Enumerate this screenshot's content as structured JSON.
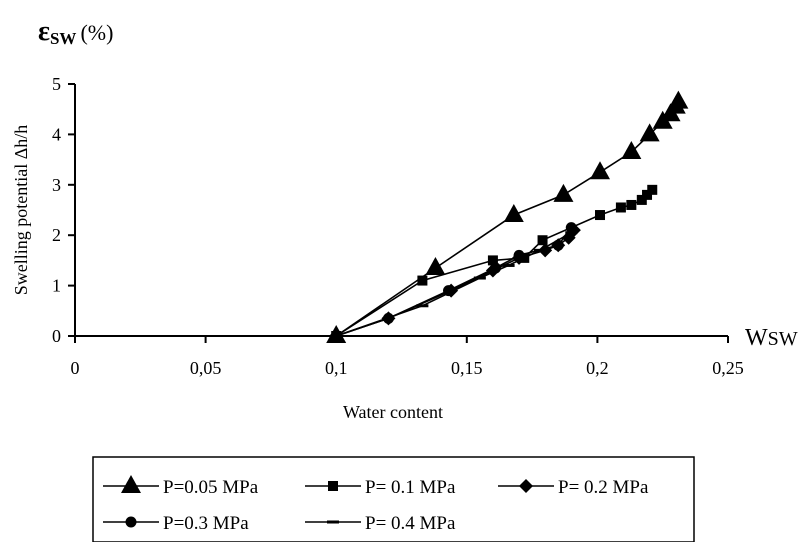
{
  "chart_data": {
    "type": "line",
    "title": "",
    "y_symbol": "ε",
    "y_symbol_sub": "SW",
    "y_unit": "(%)",
    "ylabel": "Swelling potential Δh/h",
    "xlabel": "Water content",
    "x_symbol": "W",
    "x_symbol_sub": "SW",
    "xlim": [
      0,
      0.25
    ],
    "ylim": [
      0,
      5
    ],
    "x_ticks": [
      {
        "v": 0,
        "label": "0"
      },
      {
        "v": 0.05,
        "label": "0,05"
      },
      {
        "v": 0.1,
        "label": "0,1"
      },
      {
        "v": 0.15,
        "label": "0,15"
      },
      {
        "v": 0.2,
        "label": "0,2"
      },
      {
        "v": 0.25,
        "label": "0,25"
      }
    ],
    "y_ticks": [
      {
        "v": 0,
        "label": "0"
      },
      {
        "v": 1,
        "label": "1"
      },
      {
        "v": 2,
        "label": "2"
      },
      {
        "v": 3,
        "label": "3"
      },
      {
        "v": 4,
        "label": "4"
      },
      {
        "v": 5,
        "label": "5"
      }
    ],
    "grid": false,
    "legend_position": "bottom",
    "series": [
      {
        "name": "P=0.05 MPa",
        "marker": "triangle",
        "x": [
          0.1,
          0.138,
          0.168,
          0.187,
          0.201,
          0.213,
          0.22,
          0.225,
          0.228,
          0.23,
          0.231
        ],
        "y": [
          0,
          1.35,
          2.4,
          2.8,
          3.25,
          3.65,
          4.0,
          4.25,
          4.4,
          4.55,
          4.65
        ]
      },
      {
        "name": "P= 0.1 MPa",
        "marker": "square",
        "x": [
          0.1,
          0.133,
          0.16,
          0.172,
          0.179,
          0.201,
          0.209,
          0.213,
          0.217,
          0.219,
          0.221
        ],
        "y": [
          0,
          1.1,
          1.5,
          1.55,
          1.9,
          2.4,
          2.55,
          2.6,
          2.7,
          2.8,
          2.9
        ]
      },
      {
        "name": "P= 0.2 MPa",
        "marker": "diamond",
        "x": [
          0.1,
          0.12,
          0.144,
          0.16,
          0.17,
          0.18,
          0.185,
          0.189,
          0.191
        ],
        "y": [
          0,
          0.35,
          0.9,
          1.3,
          1.55,
          1.7,
          1.8,
          1.95,
          2.1
        ]
      },
      {
        "name": "P=0.3 MPa",
        "marker": "circle",
        "x": [
          0.1,
          0.12,
          0.143,
          0.161,
          0.17,
          0.185,
          0.19
        ],
        "y": [
          0,
          0.35,
          0.9,
          1.35,
          1.6,
          1.8,
          2.15
        ]
      },
      {
        "name": "P= 0.4 MPa",
        "marker": "dash",
        "x": [
          0.1,
          0.133,
          0.155,
          0.166,
          0.178,
          0.19
        ],
        "y": [
          0,
          0.6,
          1.15,
          1.4,
          1.7,
          2.05
        ]
      }
    ],
    "smooth_extra": [
      {
        "series": 0,
        "x": [
          0.115,
          0.128,
          0.152,
          0.16
        ],
        "y": [
          0.55,
          0.95,
          1.9,
          2.2
        ]
      }
    ]
  }
}
